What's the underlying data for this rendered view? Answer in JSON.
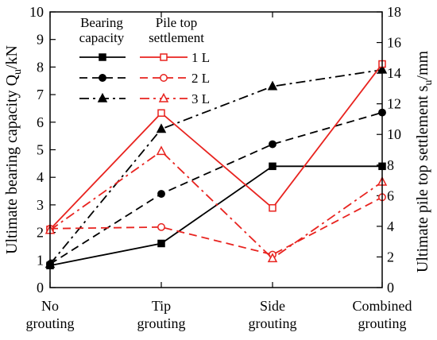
{
  "chart_data": {
    "type": "line",
    "categories": [
      [
        "No",
        "grouting"
      ],
      [
        "Tip",
        "grouting"
      ],
      [
        "Side",
        "grouting"
      ],
      [
        "Combined",
        "grouting"
      ]
    ],
    "ylabel_left": "Ultimate bearing capacity Q",
    "ylabel_left_sub": "u",
    "ylabel_left_unit": "/kN",
    "ylabel_right": "Ultimate pile top settlement s",
    "ylabel_right_sub": "u",
    "ylabel_right_unit": "/mm",
    "ylim_left": [
      0,
      10
    ],
    "ylim_right": [
      0,
      18
    ],
    "yticks_left": [
      0,
      1,
      2,
      3,
      4,
      5,
      6,
      7,
      8,
      9,
      10
    ],
    "yticks_right": [
      0,
      2,
      4,
      6,
      8,
      10,
      12,
      14,
      16,
      18
    ],
    "legend": {
      "header_bearing": [
        "Bearing",
        "capacity"
      ],
      "header_settlement": [
        "Pile top",
        "settlement"
      ],
      "labels": [
        "1 L",
        "2 L",
        "3 L"
      ]
    },
    "series": [
      {
        "group": "bearing",
        "axis": "left",
        "label": "1 L",
        "values": [
          0.8,
          1.6,
          4.4,
          4.4
        ],
        "color": "#000000",
        "dash": "solid",
        "marker": "square",
        "filled": true
      },
      {
        "group": "bearing",
        "axis": "left",
        "label": "2 L",
        "values": [
          0.85,
          3.4,
          5.2,
          6.35
        ],
        "color": "#000000",
        "dash": "dash",
        "marker": "circle",
        "filled": true
      },
      {
        "group": "bearing",
        "axis": "left",
        "label": "3 L",
        "values": [
          0.85,
          5.75,
          7.3,
          7.9
        ],
        "color": "#000000",
        "dash": "dashdot",
        "marker": "triangle",
        "filled": true
      },
      {
        "group": "settlement",
        "axis": "right",
        "label": "1 L",
        "values": [
          3.8,
          11.4,
          5.2,
          14.6
        ],
        "color": "#e8231f",
        "dash": "solid",
        "marker": "square",
        "filled": false
      },
      {
        "group": "settlement",
        "axis": "right",
        "label": "2 L",
        "values": [
          3.85,
          3.95,
          2.15,
          5.9
        ],
        "color": "#e8231f",
        "dash": "dash",
        "marker": "circle",
        "filled": false
      },
      {
        "group": "settlement",
        "axis": "right",
        "label": "3 L",
        "values": [
          3.75,
          8.9,
          1.9,
          6.9
        ],
        "color": "#e8231f",
        "dash": "dashdot",
        "marker": "triangle",
        "filled": false
      }
    ]
  }
}
